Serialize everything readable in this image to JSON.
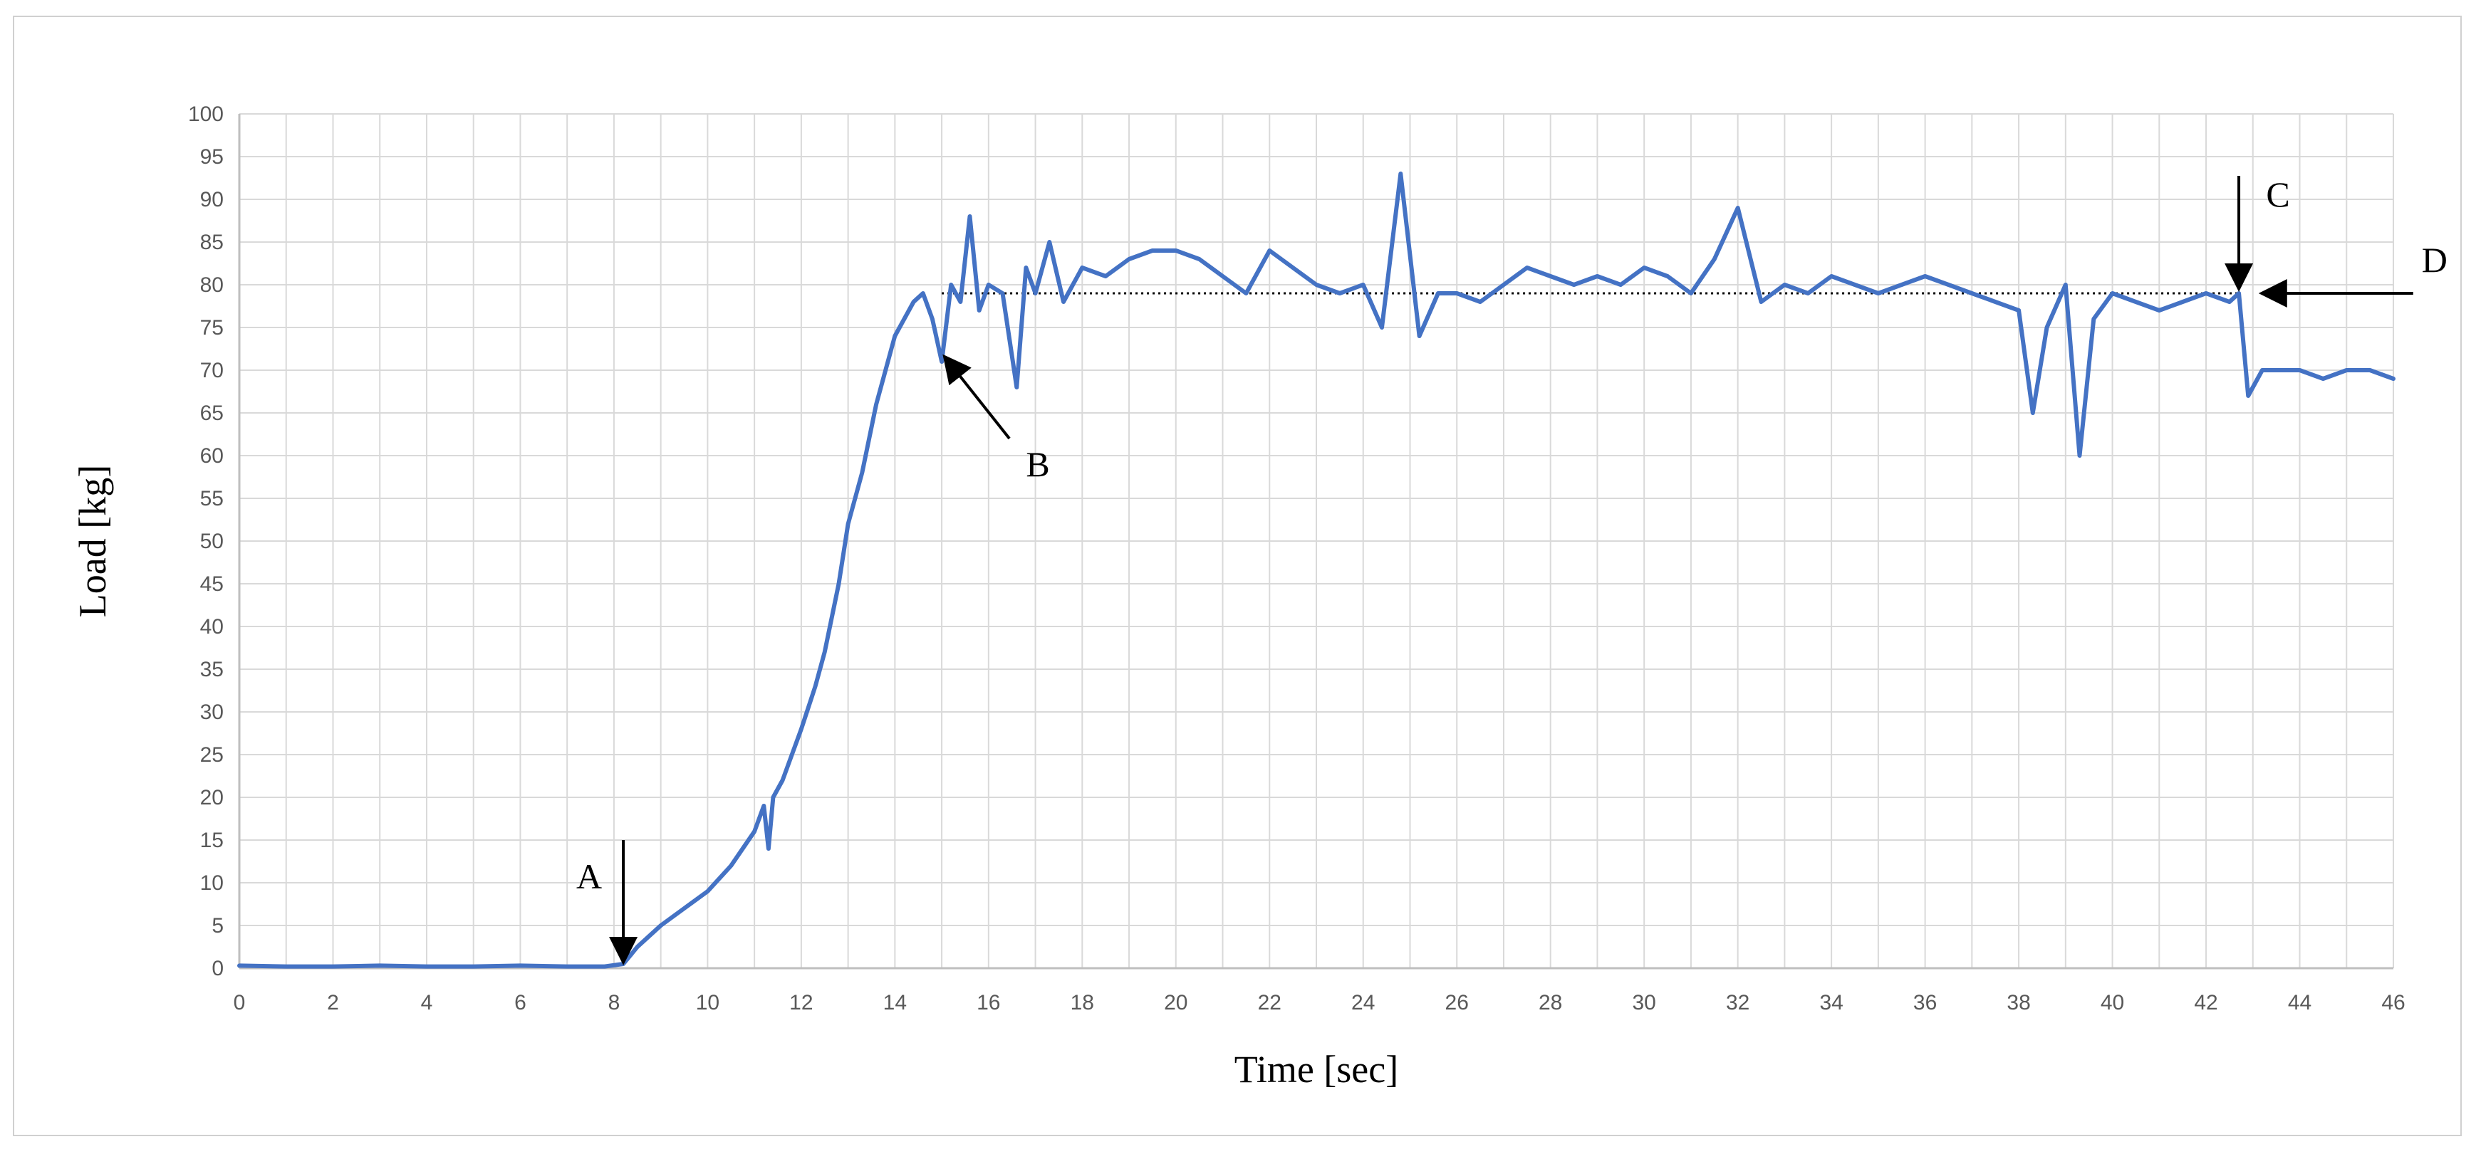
{
  "chart_data": {
    "type": "line",
    "title": "",
    "xlabel": "Time [sec]",
    "ylabel": "Load [kg]",
    "xlim": [
      0,
      46
    ],
    "ylim": [
      0,
      100
    ],
    "x_ticks": [
      "0",
      "2",
      "4",
      "6",
      "8",
      "10",
      "12",
      "14",
      "16",
      "18",
      "20",
      "22",
      "24",
      "26",
      "28",
      "30",
      "32",
      "34",
      "36",
      "38",
      "40",
      "42",
      "44",
      "46"
    ],
    "y_ticks": [
      "0",
      "5",
      "10",
      "15",
      "20",
      "25",
      "30",
      "35",
      "40",
      "45",
      "50",
      "55",
      "60",
      "65",
      "70",
      "75",
      "80",
      "85",
      "90",
      "95",
      "100"
    ],
    "grid": true,
    "legend": "none",
    "series": [
      {
        "color": "#4472c4",
        "x": [
          0,
          1,
          2,
          3,
          4,
          5,
          6,
          7,
          7.8,
          8.2,
          8.5,
          9,
          9.5,
          10,
          10.5,
          11,
          11.2,
          11.3,
          11.4,
          11.6,
          12,
          12.3,
          12.5,
          12.8,
          13,
          13.3,
          13.6,
          14,
          14.4,
          14.6,
          14.8,
          15,
          15.2,
          15.4,
          15.6,
          15.8,
          16,
          16.3,
          16.6,
          16.8,
          17,
          17.3,
          17.6,
          18,
          18.5,
          19,
          19.5,
          20,
          20.5,
          21,
          21.5,
          22,
          22.5,
          23,
          23.5,
          24,
          24.4,
          24.8,
          25.2,
          25.6,
          26,
          26.5,
          27,
          27.5,
          28,
          28.5,
          29,
          29.5,
          30,
          30.5,
          31,
          31.5,
          32,
          32.5,
          33,
          33.5,
          34,
          34.5,
          35,
          35.5,
          36,
          36.5,
          37,
          37.5,
          38,
          38.3,
          38.6,
          39,
          39.3,
          39.6,
          40,
          40.5,
          41,
          41.5,
          42,
          42.5,
          42.7,
          42.9,
          43.2,
          43.5,
          44,
          44.5,
          45,
          45.5,
          46
        ],
        "y": [
          0.3,
          0.2,
          0.2,
          0.3,
          0.2,
          0.2,
          0.3,
          0.2,
          0.2,
          0.5,
          2.5,
          5,
          7,
          9,
          12,
          16,
          19,
          14,
          20,
          22,
          28,
          33,
          37,
          45,
          52,
          58,
          66,
          74,
          78,
          79,
          76,
          71,
          80,
          78,
          88,
          77,
          80,
          79,
          68,
          82,
          79,
          85,
          78,
          82,
          81,
          83,
          84,
          84,
          83,
          81,
          79,
          84,
          82,
          80,
          79,
          80,
          75,
          93,
          74,
          79,
          79,
          78,
          80,
          82,
          81,
          80,
          81,
          80,
          82,
          81,
          79,
          83,
          89,
          78,
          80,
          79,
          81,
          80,
          79,
          80,
          81,
          80,
          79,
          78,
          77,
          65,
          75,
          80,
          60,
          76,
          79,
          78,
          77,
          78,
          79,
          78,
          79,
          67,
          70,
          70,
          70,
          69,
          70,
          70,
          69
        ]
      }
    ],
    "reference_lines": [
      {
        "style": "dotted",
        "x": [
          15,
          42.7
        ],
        "y": 79
      }
    ],
    "annotations": [
      {
        "label": "A",
        "x": 8.2,
        "y": 0
      },
      {
        "label": "B",
        "x": 15,
        "y": 72
      },
      {
        "label": "C",
        "x": 42.7,
        "y": 79
      },
      {
        "label": "D",
        "x": 43,
        "y": 79
      }
    ]
  }
}
